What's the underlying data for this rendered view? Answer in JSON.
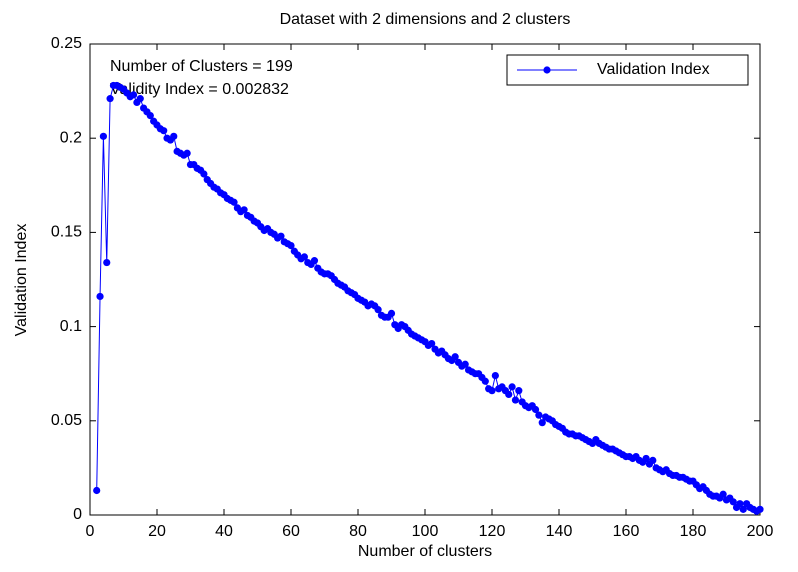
{
  "chart_data": {
    "type": "line",
    "title": "Dataset with 2 dimensions and 2 clusters",
    "xlabel": "Number of clusters",
    "ylabel": "Validation Index",
    "annotations": [
      "Number of Clusters = 199",
      "Validity Index = 0.002832"
    ],
    "legend_position": "upper right",
    "grid": false,
    "xlim": [
      0,
      200
    ],
    "ylim": [
      0,
      0.25
    ],
    "xticks": [
      0,
      20,
      40,
      60,
      80,
      100,
      120,
      140,
      160,
      180,
      200
    ],
    "yticks": [
      0,
      0.05,
      0.1,
      0.15,
      0.2,
      0.25
    ],
    "x": [
      2,
      3,
      4,
      5,
      6,
      7,
      8,
      9,
      10,
      11,
      12,
      13,
      14,
      15,
      16,
      17,
      18,
      19,
      20,
      21,
      22,
      23,
      24,
      25,
      26,
      27,
      28,
      29,
      30,
      31,
      32,
      33,
      34,
      35,
      36,
      37,
      38,
      39,
      40,
      41,
      42,
      43,
      44,
      45,
      46,
      47,
      48,
      49,
      50,
      51,
      52,
      53,
      54,
      55,
      56,
      57,
      58,
      59,
      60,
      61,
      62,
      63,
      64,
      65,
      66,
      67,
      68,
      69,
      70,
      71,
      72,
      73,
      74,
      75,
      76,
      77,
      78,
      79,
      80,
      81,
      82,
      83,
      84,
      85,
      86,
      87,
      88,
      89,
      90,
      91,
      92,
      93,
      94,
      95,
      96,
      97,
      98,
      99,
      100,
      101,
      102,
      103,
      104,
      105,
      106,
      107,
      108,
      109,
      110,
      111,
      112,
      113,
      114,
      115,
      116,
      117,
      118,
      119,
      120,
      121,
      122,
      123,
      124,
      125,
      126,
      127,
      128,
      129,
      130,
      131,
      132,
      133,
      134,
      135,
      136,
      137,
      138,
      139,
      140,
      141,
      142,
      143,
      144,
      145,
      146,
      147,
      148,
      149,
      150,
      151,
      152,
      153,
      154,
      155,
      156,
      157,
      158,
      159,
      160,
      161,
      162,
      163,
      164,
      165,
      166,
      167,
      168,
      169,
      170,
      171,
      172,
      173,
      174,
      175,
      176,
      177,
      178,
      179,
      180,
      181,
      182,
      183,
      184,
      185,
      186,
      187,
      188,
      189,
      190,
      191,
      192,
      193,
      194,
      195,
      196,
      197,
      198,
      199,
      200
    ],
    "series": [
      {
        "name": "Validation Index",
        "color": "#0000ff",
        "values": [
          0.013,
          0.116,
          0.201,
          0.134,
          0.221,
          0.228,
          0.228,
          0.227,
          0.226,
          0.224,
          0.222,
          0.223,
          0.219,
          0.221,
          0.216,
          0.214,
          0.212,
          0.209,
          0.207,
          0.205,
          0.204,
          0.2,
          0.199,
          0.201,
          0.193,
          0.192,
          0.191,
          0.192,
          0.186,
          0.186,
          0.184,
          0.183,
          0.181,
          0.178,
          0.176,
          0.174,
          0.173,
          0.171,
          0.17,
          0.168,
          0.167,
          0.166,
          0.163,
          0.161,
          0.162,
          0.159,
          0.158,
          0.156,
          0.155,
          0.153,
          0.151,
          0.152,
          0.15,
          0.149,
          0.147,
          0.148,
          0.145,
          0.144,
          0.143,
          0.14,
          0.138,
          0.136,
          0.137,
          0.134,
          0.133,
          0.135,
          0.131,
          0.129,
          0.128,
          0.128,
          0.127,
          0.125,
          0.123,
          0.122,
          0.121,
          0.119,
          0.118,
          0.117,
          0.115,
          0.114,
          0.113,
          0.111,
          0.112,
          0.111,
          0.109,
          0.106,
          0.105,
          0.105,
          0.107,
          0.101,
          0.099,
          0.101,
          0.1,
          0.098,
          0.096,
          0.095,
          0.094,
          0.093,
          0.092,
          0.09,
          0.091,
          0.088,
          0.086,
          0.087,
          0.085,
          0.083,
          0.082,
          0.084,
          0.081,
          0.079,
          0.08,
          0.077,
          0.076,
          0.075,
          0.075,
          0.073,
          0.071,
          0.067,
          0.066,
          0.074,
          0.067,
          0.068,
          0.066,
          0.064,
          0.068,
          0.061,
          0.066,
          0.06,
          0.058,
          0.057,
          0.058,
          0.056,
          0.053,
          0.049,
          0.052,
          0.051,
          0.05,
          0.048,
          0.047,
          0.046,
          0.044,
          0.043,
          0.043,
          0.042,
          0.042,
          0.041,
          0.04,
          0.039,
          0.038,
          0.04,
          0.038,
          0.037,
          0.036,
          0.035,
          0.035,
          0.034,
          0.033,
          0.032,
          0.031,
          0.031,
          0.03,
          0.031,
          0.029,
          0.028,
          0.03,
          0.027,
          0.029,
          0.025,
          0.024,
          0.023,
          0.024,
          0.022,
          0.021,
          0.021,
          0.02,
          0.02,
          0.019,
          0.018,
          0.018,
          0.016,
          0.014,
          0.015,
          0.013,
          0.011,
          0.01,
          0.01,
          0.009,
          0.011,
          0.008,
          0.009,
          0.007,
          0.004,
          0.006,
          0.003,
          0.006,
          0.004,
          0.003,
          0.002,
          0.003
        ]
      }
    ]
  }
}
